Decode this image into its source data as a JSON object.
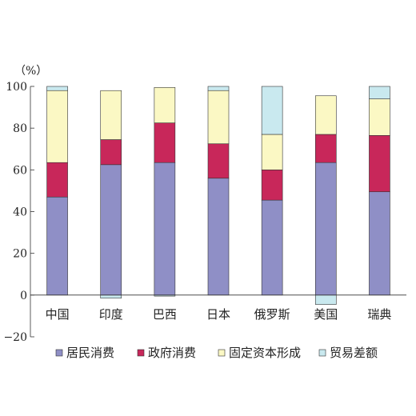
{
  "chart_data": {
    "type": "bar",
    "stacked": true,
    "unit_label": "（%）",
    "categories": [
      "中国",
      "印度",
      "巴西",
      "日本",
      "俄罗斯",
      "美国",
      "瑞典"
    ],
    "series": [
      {
        "name": "居民消费",
        "color": "#8f8fc6",
        "values": [
          47,
          62.5,
          63.5,
          56,
          45.5,
          63.5,
          49.5
        ]
      },
      {
        "name": "政府消费",
        "color": "#c8275a",
        "values": [
          16.5,
          12,
          19,
          16.5,
          14.5,
          13.5,
          27
        ]
      },
      {
        "name": "固定资本形成",
        "color": "#fbf8c4",
        "values": [
          34.5,
          23.5,
          17,
          25.5,
          17,
          18.5,
          17.5
        ]
      },
      {
        "name": "贸易差额",
        "color": "#c9e9ef",
        "values": [
          2,
          -1.5,
          -0.5,
          2,
          23,
          -4.5,
          6
        ]
      }
    ],
    "ylim": [
      -20,
      100
    ],
    "yticks": [
      -20,
      0,
      20,
      40,
      60,
      80,
      100
    ],
    "ytick_labels": [
      "−20",
      "0",
      "20",
      "40",
      "60",
      "80",
      "100"
    ],
    "xlabel": "",
    "ylabel": "",
    "grid": false,
    "legend_position": "bottom"
  }
}
